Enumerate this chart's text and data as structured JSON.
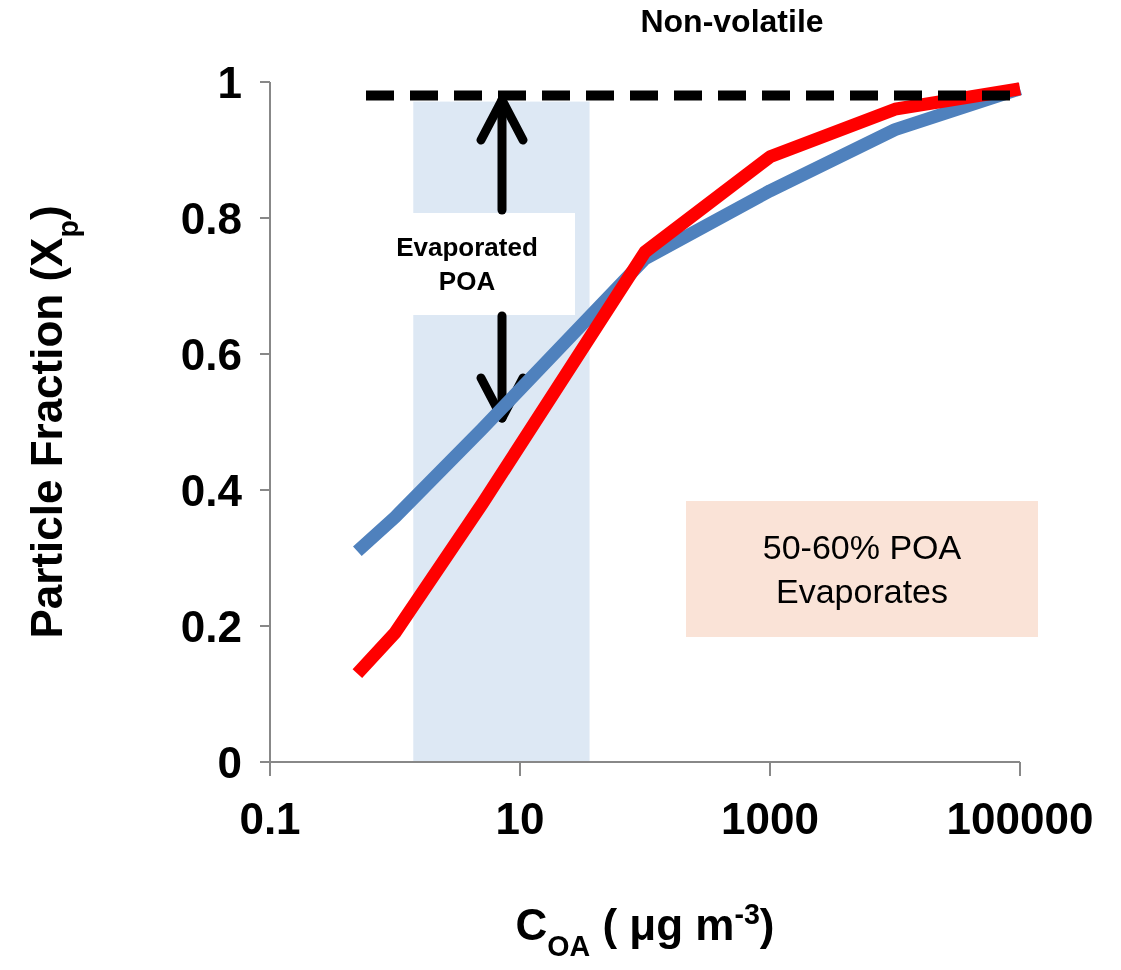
{
  "chart_data": {
    "type": "line",
    "xlabel": "C$_{OA}$ ( μg m$^{-3}$)",
    "ylabel": "Particle Fraction (X$_{p}$)",
    "log": "x",
    "xlim": [
      0.1,
      100000
    ],
    "xticks": [
      0.1,
      10,
      1000,
      100000
    ],
    "ylim": [
      0,
      1
    ],
    "yticks": [
      0,
      0.2,
      0.4,
      0.6,
      0.8,
      1
    ],
    "grid": false,
    "marker": "none",
    "line_style": "solid",
    "series": [
      {
        "color": "#4f81bd",
        "x": [
          0.5,
          1,
          5,
          100,
          1000,
          10000,
          100000
        ],
        "values": [
          0.31,
          0.36,
          0.49,
          0.74,
          0.84,
          0.93,
          0.99
        ]
      },
      {
        "color": "#ff0000",
        "x": [
          0.5,
          1,
          5,
          100,
          1000,
          10000,
          100000
        ],
        "values": [
          0.13,
          0.19,
          0.38,
          0.75,
          0.89,
          0.96,
          0.99
        ]
      }
    ],
    "ref_lines": [
      {
        "axis": "y",
        "value": 0.98,
        "label": "Non-volatile",
        "color": "#000000",
        "line_style": "dashed"
      }
    ],
    "bands": [
      {
        "axis": "x",
        "from": 1.4,
        "to": 36,
        "color": "#dde8f4"
      }
    ],
    "annotations": [
      "Evaporated\nPOA",
      "50-60% POA\nEvaporates"
    ]
  }
}
